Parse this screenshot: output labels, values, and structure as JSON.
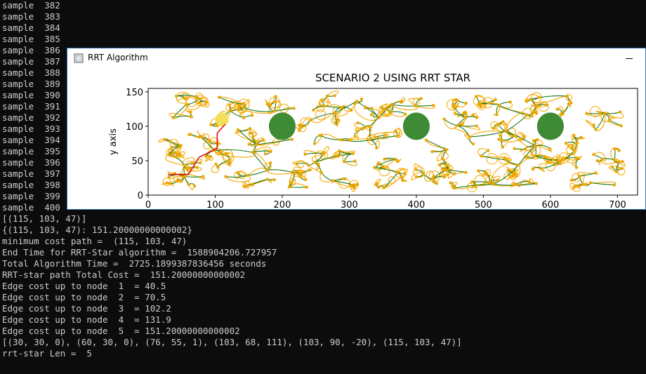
{
  "console": {
    "lines": [
      "sample  382",
      "sample  383",
      "sample  384",
      "sample  385",
      "sample  386",
      "sample  387",
      "sample  388",
      "sample  389",
      "sample  390",
      "sample  391",
      "sample  392",
      "sample  393",
      "sample  394",
      "sample  395",
      "sample  396",
      "sample  397",
      "sample  398",
      "sample  399",
      "sample  400",
      "[(115, 103, 47)]",
      "{(115, 103, 47): 151.20000000000002}",
      "minimum cost path =  (115, 103, 47)",
      "End Time for RRT-Star algorithm =  1588904206.727957",
      "Total Algorithm Time =  2725.1899387836456 seconds",
      "RRT-star path Total Cost =  151.20000000000002",
      "Edge cost up to node  1  = 40.5",
      "Edge cost up to node  2  = 70.5",
      "Edge cost up to node  3  = 102.2",
      "Edge cost up to node  4  = 131.9",
      "Edge cost up to node  5  = 151.20000000000002",
      "[(30, 30, 0), (60, 30, 0), (76, 55, 1), (103, 68, 111), (103, 90, -20), (115, 103, 47)]",
      "rrt-star Len =  5"
    ]
  },
  "window": {
    "title": "RRT Algorithm"
  },
  "chart_data": {
    "type": "scatter",
    "title": "SCENARIO 2 USING RRT STAR",
    "xlabel": "",
    "ylabel": "y axis",
    "xlim": [
      0,
      730
    ],
    "ylim": [
      0,
      155
    ],
    "x_ticks": [
      0,
      100,
      200,
      300,
      400,
      500,
      600,
      700
    ],
    "y_ticks": [
      0,
      50,
      100,
      150
    ],
    "x_tick_labels": [
      "0",
      "100",
      "200",
      "300",
      "400",
      "500",
      "600",
      "700"
    ],
    "y_tick_labels": [
      "0",
      "50",
      "100",
      "150"
    ],
    "grid": false,
    "obstacles": [
      {
        "x": 200,
        "y": 100,
        "r": 20
      },
      {
        "x": 400,
        "y": 100,
        "r": 20
      },
      {
        "x": 600,
        "y": 100,
        "r": 20
      }
    ],
    "goal": {
      "x": 110,
      "y": 110,
      "r": 10
    },
    "final_path": [
      {
        "x": 30,
        "y": 30
      },
      {
        "x": 60,
        "y": 30
      },
      {
        "x": 76,
        "y": 55
      },
      {
        "x": 103,
        "y": 68
      },
      {
        "x": 103,
        "y": 90
      },
      {
        "x": 115,
        "y": 103
      }
    ],
    "colors": {
      "tree_edges": "#1a7a1a",
      "curved_edges": "#f5a800",
      "nodes": "#f0a500",
      "obstacles": "#3e8a35",
      "goal": "#f2e05a",
      "path": "#e01010"
    }
  }
}
